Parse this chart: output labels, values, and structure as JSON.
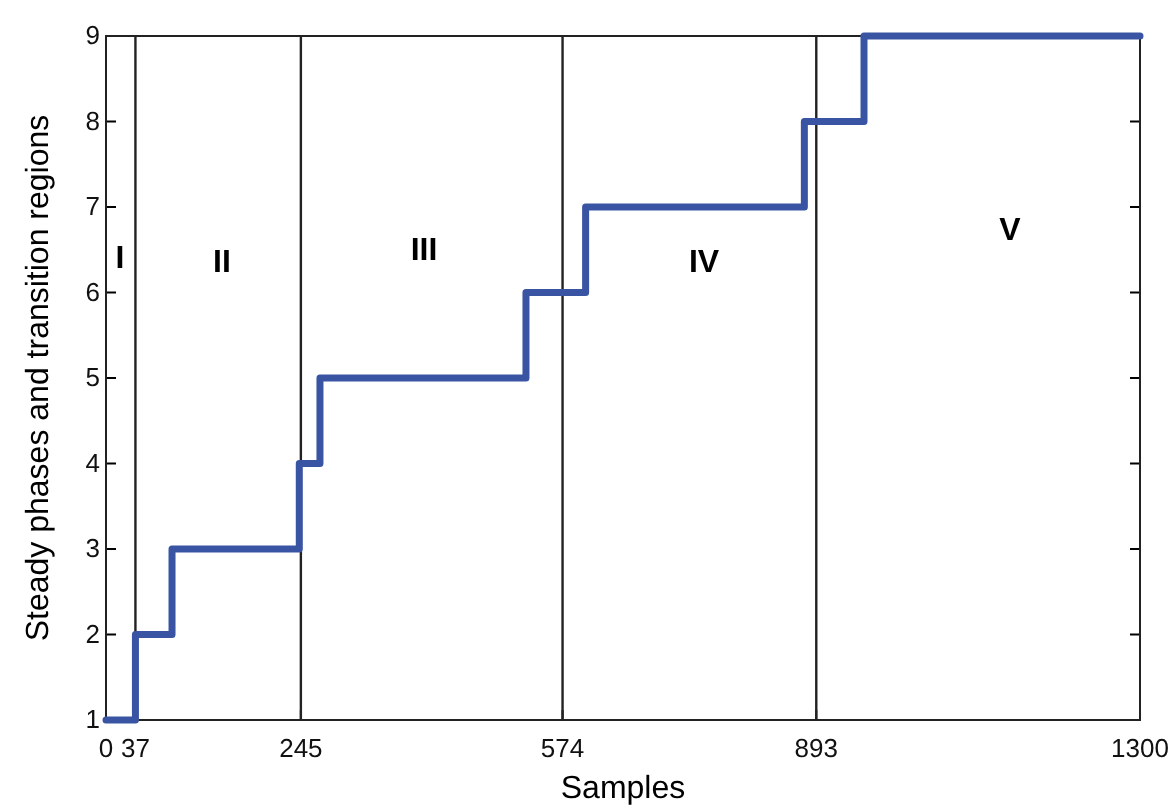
{
  "chart_data": {
    "type": "step",
    "xlabel": "Samples",
    "ylabel": "Steady phases and transition regions",
    "x": [
      0,
      37,
      83,
      243,
      269,
      528,
      603,
      878,
      953,
      1300
    ],
    "series": [
      {
        "color": "#3a54a4",
        "values": [
          1,
          2,
          3,
          4,
          5,
          6,
          7,
          8,
          9,
          9
        ]
      }
    ],
    "xlim": [
      0,
      1300
    ],
    "xticks": [
      0,
      37,
      245,
      574,
      893,
      1300
    ],
    "ylim": [
      1,
      9
    ],
    "yticks": [
      1,
      2,
      3,
      4,
      5,
      6,
      7,
      8,
      9
    ],
    "ref_lines": [
      {
        "axis": "x",
        "value": 37,
        "color": "#222222"
      },
      {
        "axis": "x",
        "value": 245,
        "color": "#222222"
      },
      {
        "axis": "x",
        "value": 574,
        "color": "#222222"
      },
      {
        "axis": "x",
        "value": 893,
        "color": "#222222"
      }
    ],
    "annotations": [
      "I",
      "II",
      "III",
      "IV",
      "V"
    ],
    "grid": false,
    "line_style": "solid",
    "marker": "none"
  }
}
